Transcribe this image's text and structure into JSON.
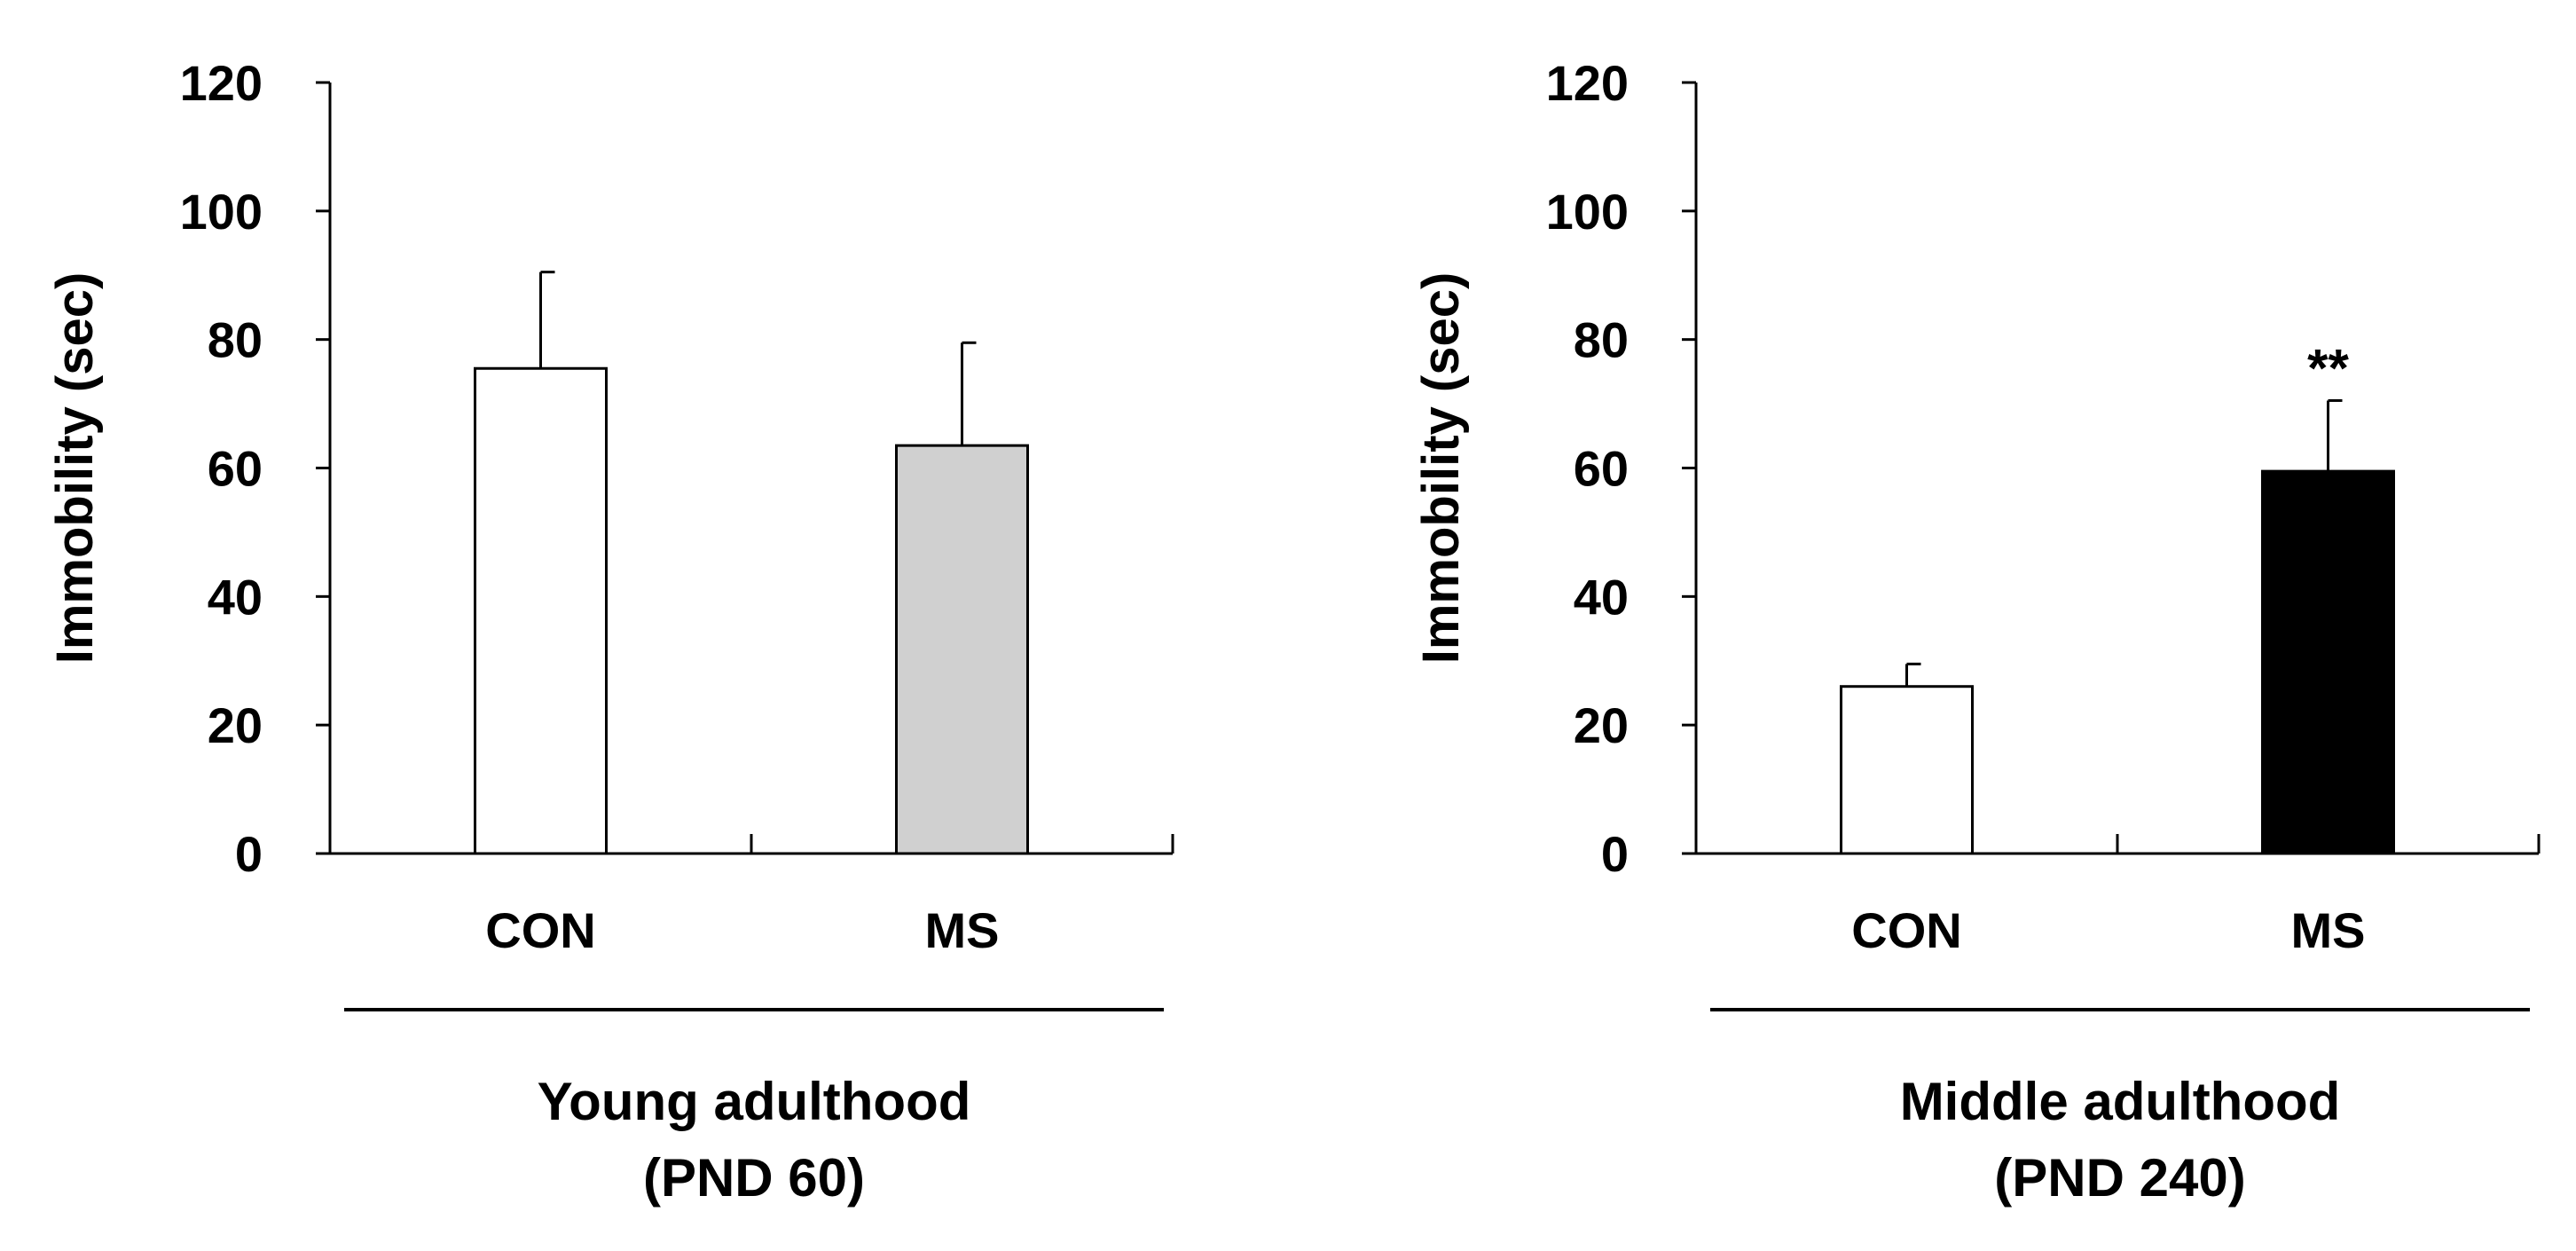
{
  "chart_data": [
    {
      "type": "bar",
      "title": "",
      "ylabel": "Immobility (sec)",
      "xlabel": "",
      "ylim": [
        0,
        120
      ],
      "yticks": [
        0,
        20,
        40,
        60,
        80,
        100,
        120
      ],
      "categories": [
        "CON",
        "MS"
      ],
      "values": [
        75.5,
        63.5
      ],
      "errors": [
        15,
        16
      ],
      "bar_colors": [
        "#ffffff",
        "#d0d0d0"
      ],
      "annotations": [
        "",
        ""
      ],
      "group_label_line1": "Young adulthood",
      "group_label_line2": "(PND 60)"
    },
    {
      "type": "bar",
      "title": "",
      "ylabel": "Immobility (sec)",
      "xlabel": "",
      "ylim": [
        0,
        120
      ],
      "yticks": [
        0,
        20,
        40,
        60,
        80,
        100,
        120
      ],
      "categories": [
        "CON",
        "MS"
      ],
      "values": [
        26,
        59.5
      ],
      "errors": [
        3.5,
        11
      ],
      "bar_colors": [
        "#ffffff",
        "#000000"
      ],
      "annotations": [
        "",
        "**"
      ],
      "group_label_line1": "Middle adulthood",
      "group_label_line2": "(PND 240)"
    }
  ]
}
